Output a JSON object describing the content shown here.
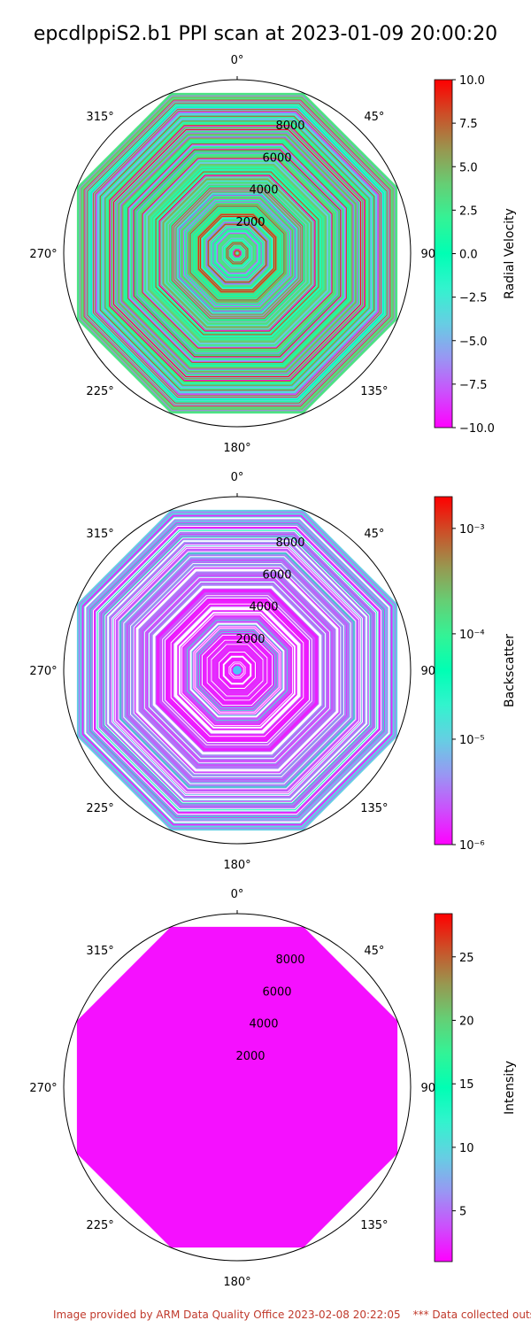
{
  "title": "epcdlppiS2.b1 PPI scan at 2023-01-09 20:00:20",
  "footer": {
    "left": "Image provided by ARM Data Quality Office 2023-02-08 20:22:05",
    "right": "*** Data collected outside"
  },
  "chart_data": [
    {
      "type": "polar",
      "theta_ticks": [
        "0°",
        "45°",
        "90°",
        "135°",
        "180°",
        "225°",
        "270°",
        "315°"
      ],
      "r_ticks": [
        2000,
        4000,
        6000,
        8000
      ],
      "r_max": 10000,
      "colorbar": {
        "label": "Radial Velocity",
        "scale": "linear",
        "range": [
          -10.0,
          10.0
        ],
        "ticks": [
          "10.0",
          "7.5",
          "5.0",
          "2.5",
          "0.0",
          "−2.5",
          "−5.0",
          "−7.5",
          "−10.0"
        ],
        "colormap": "rainbow"
      }
    },
    {
      "type": "polar",
      "theta_ticks": [
        "0°",
        "45°",
        "90°",
        "135°",
        "180°",
        "225°",
        "270°",
        "315°"
      ],
      "r_ticks": [
        2000,
        4000,
        6000,
        8000
      ],
      "r_max": 10000,
      "colorbar": {
        "label": "Backscatter",
        "scale": "log",
        "range": [
          1e-06,
          0.002
        ],
        "ticks": [
          "10⁻³",
          "10⁻⁴",
          "10⁻⁵",
          "10⁻⁶"
        ],
        "colormap": "rainbow"
      }
    },
    {
      "type": "polar",
      "theta_ticks": [
        "0°",
        "45°",
        "90°",
        "135°",
        "180°",
        "225°",
        "270°",
        "315°"
      ],
      "r_ticks": [
        2000,
        4000,
        6000,
        8000
      ],
      "r_max": 10000,
      "colorbar": {
        "label": "Intensity",
        "scale": "linear",
        "range": [
          1.0,
          28.4
        ],
        "ticks": [
          "25",
          "20",
          "15",
          "10",
          "5"
        ],
        "colormap": "rainbow"
      }
    }
  ]
}
